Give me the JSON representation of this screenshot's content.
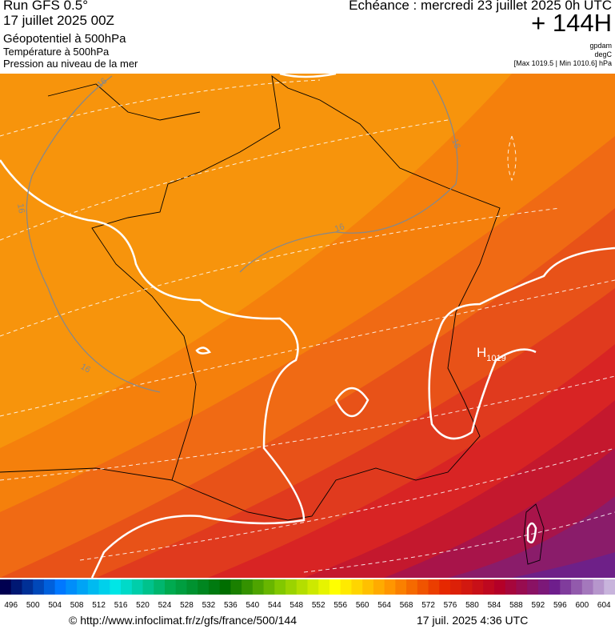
{
  "header": {
    "run": "Run GFS 0.5°",
    "date": "17 juillet 2025 00Z",
    "field": "Géopotentiel à 500hPa",
    "field2": "Température à 500hPa",
    "field3": "Pression au niveau de la mer",
    "echeance": "Echéance : mercredi 23 juillet 2025 0h UTC",
    "offset": "+ 144H",
    "unit1": "gpdam",
    "unit2": "degC",
    "range": "[Max 1019.5 | Min 1010.6] hPa"
  },
  "map": {
    "high": "H",
    "high_value": "1019",
    "contour_labels": [
      "16",
      "16",
      "16",
      "16",
      "16"
    ]
  },
  "scale": {
    "labels": [
      496,
      500,
      504,
      508,
      512,
      516,
      520,
      524,
      528,
      532,
      536,
      540,
      544,
      548,
      552,
      556,
      560,
      564,
      568,
      572,
      576,
      580,
      584,
      588,
      592,
      596,
      600,
      604
    ]
  },
  "footer": {
    "source": "© http://www.infoclimat.fr/z/gfs/france/500/144",
    "timestamp": "17 juil. 2025  4:36 UTC"
  }
}
